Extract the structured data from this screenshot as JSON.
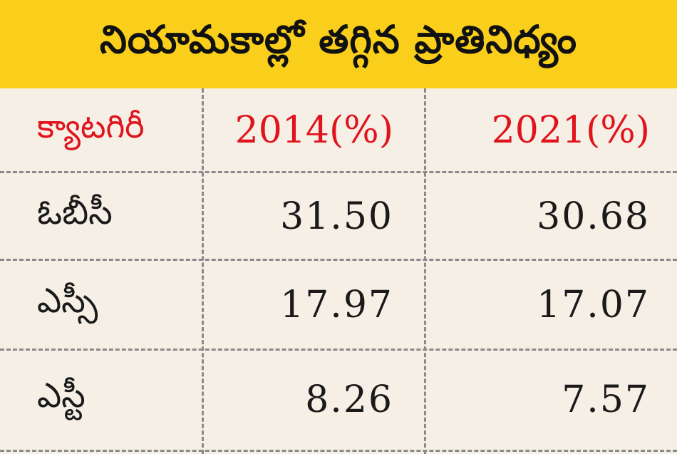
{
  "title": "నియామకాల్లో తగ్గిన ప్రాతినిధ్యం",
  "colors": {
    "title_background": "#f9cf1c",
    "header_text": "#e1131d",
    "body_text": "#1a1a1a",
    "table_background": "#f5efe6",
    "grid_lines": "#8a8a8a"
  },
  "chart_data": {
    "type": "table",
    "title": "నియామకాల్లో తగ్గిన ప్రాతినిధ్యం",
    "columns": [
      "క్యాటగిరీ",
      "2014(%)",
      "2021(%)"
    ],
    "rows": [
      {
        "category": "ఓబీసీ",
        "values": [
          "31.50",
          "30.68"
        ]
      },
      {
        "category": "ఎస్సీ",
        "values": [
          "17.97",
          "17.07"
        ]
      },
      {
        "category": "ఎస్టీ",
        "values": [
          "8.26",
          "7.57"
        ]
      }
    ],
    "series": [
      {
        "name": "2014(%)",
        "values": [
          31.5,
          17.97,
          8.26
        ]
      },
      {
        "name": "2021(%)",
        "values": [
          30.68,
          17.07,
          7.57
        ]
      }
    ],
    "categories": [
      "ఓబీసీ",
      "ఎస్సీ",
      "ఎస్టీ"
    ]
  }
}
